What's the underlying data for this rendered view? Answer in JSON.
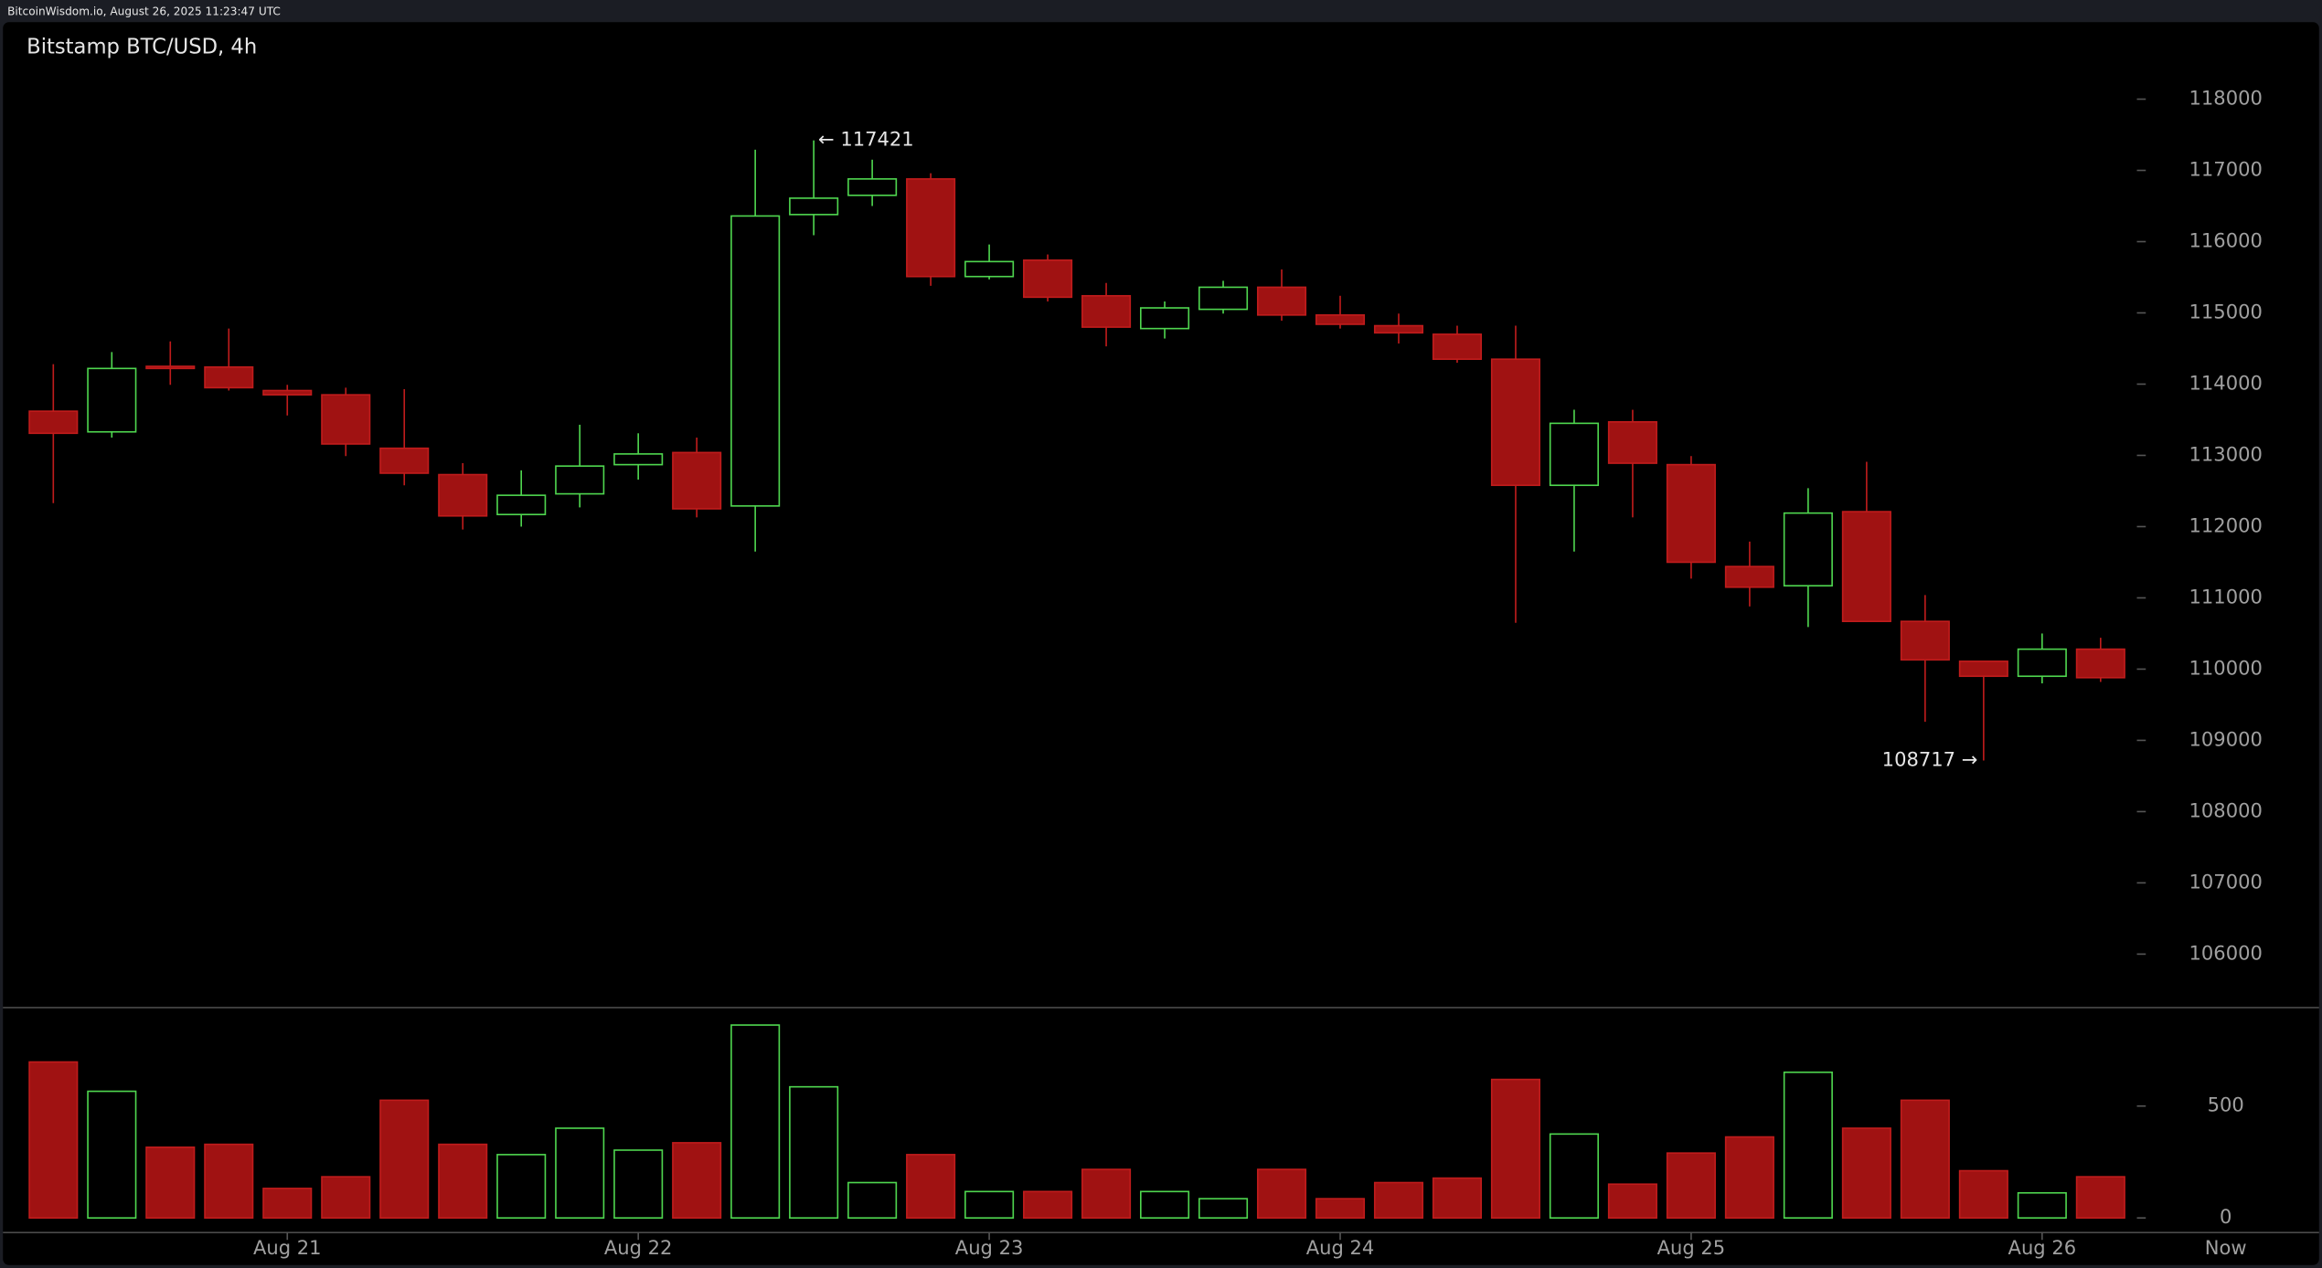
{
  "source": "BitcoinWisdom.io, August 26, 2025 11:23:47 UTC",
  "chart_data": {
    "type": "candlestick",
    "title": "Bitstamp BTC/USD, 4h",
    "categories": [
      null,
      null,
      null,
      null,
      "Aug 21",
      null,
      null,
      null,
      null,
      null,
      "Aug 22",
      null,
      null,
      null,
      null,
      null,
      "Aug 23",
      null,
      null,
      null,
      null,
      null,
      "Aug 24",
      null,
      null,
      null,
      null,
      null,
      "Aug 25",
      null,
      null,
      null,
      null,
      null,
      "Aug 26",
      null
    ],
    "now_label": "Now",
    "open": [
      113620,
      113330,
      114250,
      114240,
      113910,
      113850,
      113100,
      112730,
      112170,
      112460,
      112870,
      113040,
      112290,
      116380,
      116650,
      116880,
      115510,
      115740,
      115240,
      114780,
      115050,
      115360,
      114970,
      114820,
      114700,
      114350,
      112580,
      113470,
      112870,
      111440,
      111170,
      112210,
      110670,
      110110,
      109900,
      110280
    ],
    "high": [
      114280,
      114450,
      114600,
      114780,
      113990,
      113950,
      113930,
      112890,
      112790,
      113430,
      113310,
      113250,
      117290,
      117421,
      117150,
      116960,
      115960,
      115820,
      115420,
      115160,
      115450,
      115610,
      115240,
      114990,
      114820,
      114820,
      113640,
      113640,
      112990,
      111790,
      112540,
      112910,
      111040,
      110110,
      110500,
      110440
    ],
    "low": [
      112330,
      113250,
      113990,
      113910,
      113560,
      112990,
      112580,
      111960,
      112000,
      112270,
      112660,
      112130,
      111650,
      116090,
      116500,
      115380,
      115470,
      115160,
      114530,
      114640,
      114990,
      114890,
      114780,
      114570,
      114300,
      110650,
      111650,
      112130,
      111270,
      110880,
      110590,
      110670,
      109260,
      108717,
      109800,
      109820
    ],
    "close": [
      113310,
      114220,
      114220,
      113950,
      113850,
      113160,
      112750,
      112150,
      112440,
      112850,
      113020,
      112250,
      116360,
      116610,
      116880,
      115510,
      115720,
      115220,
      114800,
      115070,
      115360,
      114970,
      114840,
      114720,
      114350,
      112580,
      113450,
      112890,
      111500,
      111150,
      112190,
      110670,
      110130,
      109900,
      110280,
      109880
    ],
    "volume": [
      697,
      566,
      316,
      329,
      132,
      184,
      526,
      329,
      283,
      401,
      303,
      336,
      862,
      586,
      158,
      283,
      118,
      118,
      217,
      118,
      86,
      217,
      86,
      158,
      178,
      619,
      375,
      151,
      290,
      362,
      651,
      401,
      526,
      211,
      112,
      184
    ],
    "ylim": [
      105270,
      119080
    ],
    "yticks": [
      106000,
      107000,
      108000,
      109000,
      110000,
      111000,
      112000,
      113000,
      114000,
      115000,
      116000,
      117000,
      118000
    ],
    "volume_ylim": [
      -65,
      940
    ],
    "volume_yticks": [
      0,
      500
    ],
    "annotations": [
      "← 117421",
      "108717 →"
    ],
    "up_color": "#4fd64f",
    "down_color": "#a01212"
  }
}
